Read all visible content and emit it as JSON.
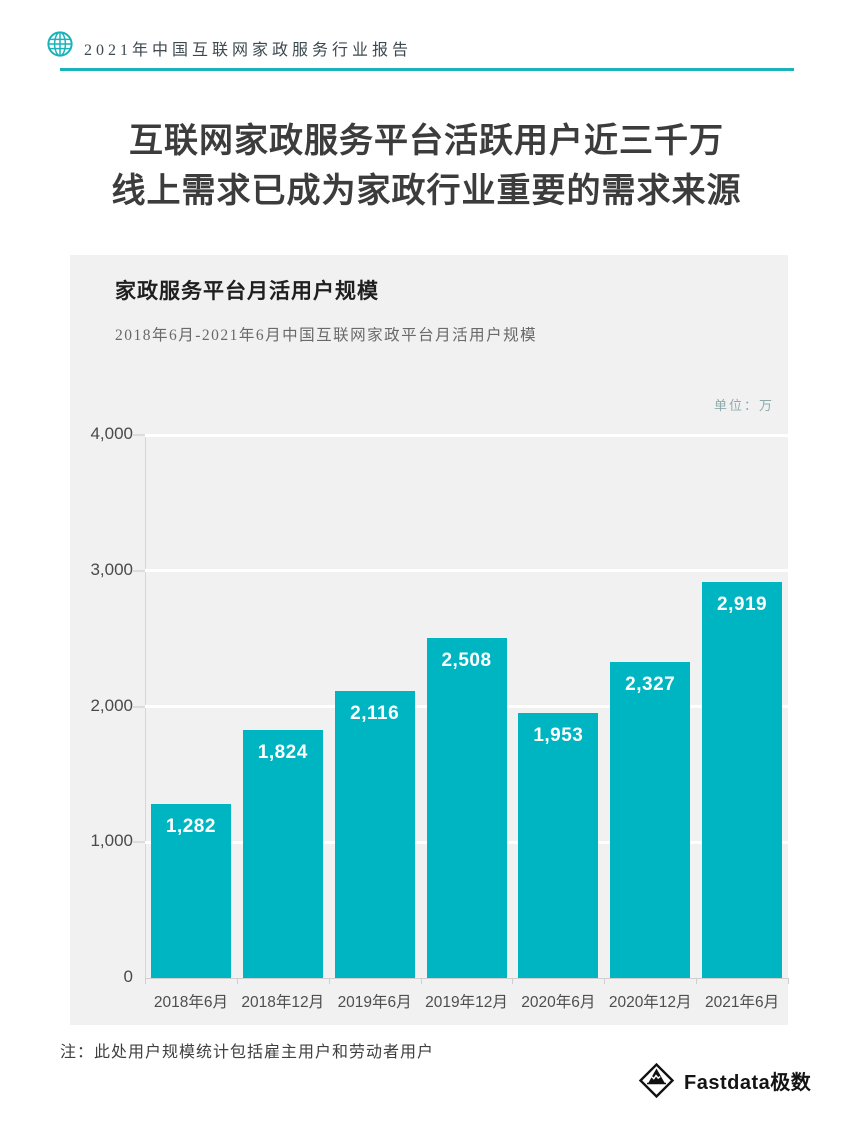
{
  "page": {
    "report_badge": "2021年中国互联网家政服务行业报告",
    "headline_line1": "互联网家政服务平台活跃用户近三千万",
    "headline_line2": "线上需求已成为家政行业重要的需求来源",
    "footnote": "注：此处用户规模统计包括雇主用户和劳动者用户",
    "logo_text": "Fastdata极数"
  },
  "colors": {
    "accent": "#1bb2ba",
    "bar": "#00b5c2",
    "panel_bg": "#f1f1f2",
    "grid": "#ffffff",
    "headline_text": "#3c3c3c"
  },
  "icons": {
    "globe": "globe-icon",
    "mountain": "fastdata-mountain-icon"
  },
  "chart_data": {
    "type": "bar",
    "title": "家政服务平台月活用户规模",
    "subtitle": "2018年6月-2021年6月中国互联网家政平台月活用户规模",
    "unit_label": "单位：万",
    "categories": [
      "2018年6月",
      "2018年12月",
      "2019年6月",
      "2019年12月",
      "2020年6月",
      "2020年12月",
      "2021年6月"
    ],
    "values": [
      1282,
      1824,
      2116,
      2508,
      1953,
      2327,
      2919
    ],
    "value_labels": [
      "1,282",
      "1,824",
      "2,116",
      "2,508",
      "1,953",
      "2,327",
      "2,919"
    ],
    "ylim": [
      0,
      4000
    ],
    "yticks": [
      0,
      1000,
      2000,
      3000,
      4000
    ],
    "ytick_labels": [
      "0",
      "1,000",
      "2,000",
      "3,000",
      "4,000"
    ],
    "grid": true,
    "legend": "none",
    "bar_color": "#00b5c2",
    "value_label_color": "#ffffff"
  }
}
